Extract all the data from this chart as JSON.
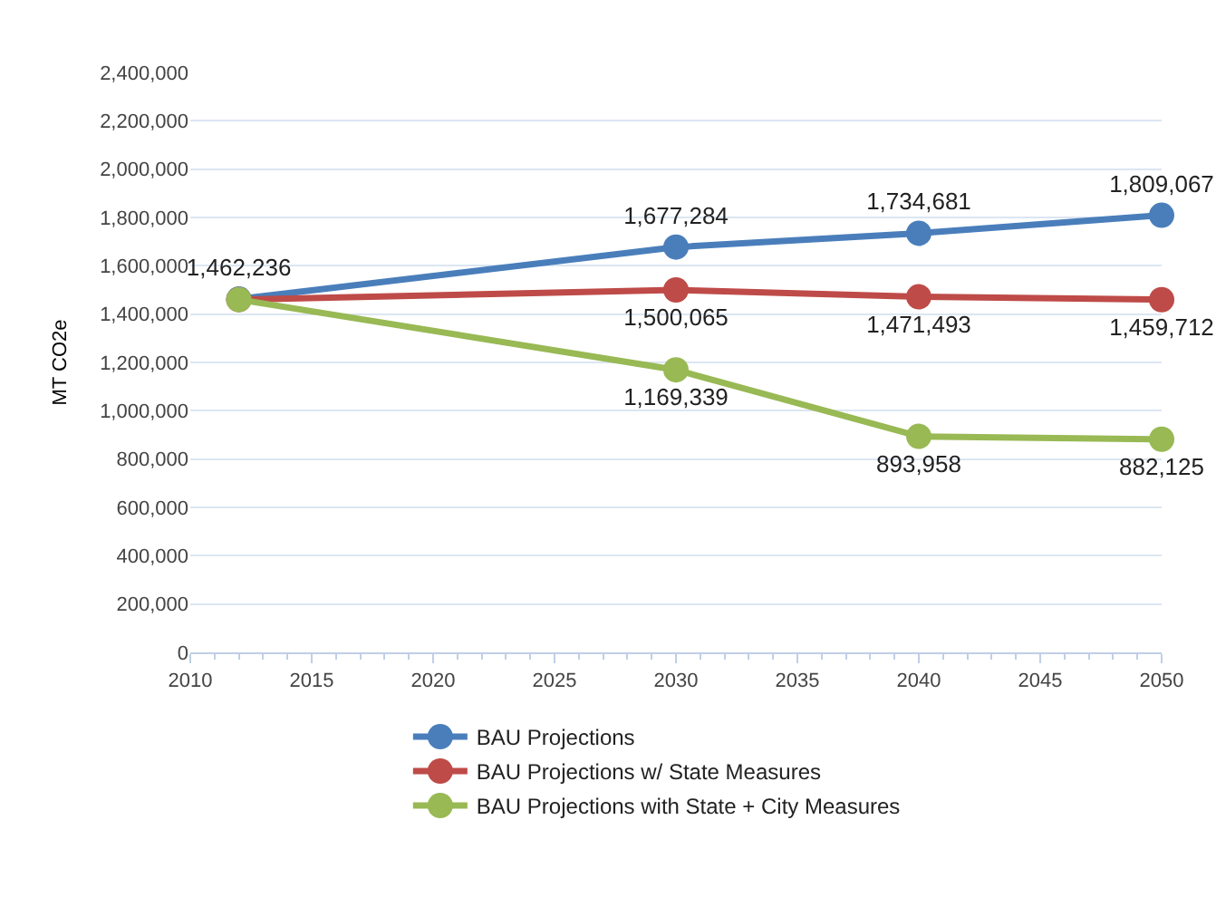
{
  "chart_data": {
    "type": "line",
    "ylabel": "MT CO2e",
    "x": [
      2012,
      2030,
      2040,
      2050
    ],
    "series": [
      {
        "name": "BAU Projections",
        "color": "#4a7ebb",
        "values": [
          1462236,
          1677284,
          1734681,
          1809067
        ],
        "value_labels": [
          "1,462,236",
          "1,677,284",
          "1,734,681",
          "1,809,067"
        ]
      },
      {
        "name": "BAU Projections w/ State Measures",
        "color": "#be4b48",
        "values": [
          1460000,
          1500065,
          1471493,
          1459712
        ],
        "value_labels": [
          null,
          "1,500,065",
          "1,471,493",
          "1,459,712"
        ]
      },
      {
        "name": "BAU Projections with State + City Measures",
        "color": "#98b954",
        "values": [
          1460000,
          1169339,
          893958,
          882125
        ],
        "value_labels": [
          null,
          "1,169,339",
          "893,958",
          "882,125"
        ]
      }
    ],
    "xlim": [
      2010,
      2050
    ],
    "xticks": [
      2010,
      2015,
      2020,
      2025,
      2030,
      2035,
      2040,
      2045,
      2050
    ],
    "ylim": [
      0,
      2400000
    ],
    "yticks": [
      0,
      {
        "value": 200000,
        "label": "200,000"
      },
      {
        "value": 400000,
        "label": "400,000"
      },
      {
        "value": 600000,
        "label": "600,000"
      },
      {
        "value": 800000,
        "label": "800,000"
      },
      {
        "value": 1000000,
        "label": "1,000,000"
      },
      {
        "value": 1200000,
        "label": "1,200,000"
      },
      {
        "value": 1400000,
        "label": "1,400,000"
      },
      {
        "value": 1600000,
        "label": "1,600,000"
      },
      {
        "value": 1800000,
        "label": "1,800,000"
      },
      {
        "value": 2000000,
        "label": "2,000,000"
      },
      {
        "value": 2200000,
        "label": "2,200,000"
      },
      {
        "value": 2400000,
        "label": "2,400,000"
      }
    ],
    "grid": "y",
    "legend": "bottom",
    "marker": "circle",
    "line_style": "solid"
  }
}
